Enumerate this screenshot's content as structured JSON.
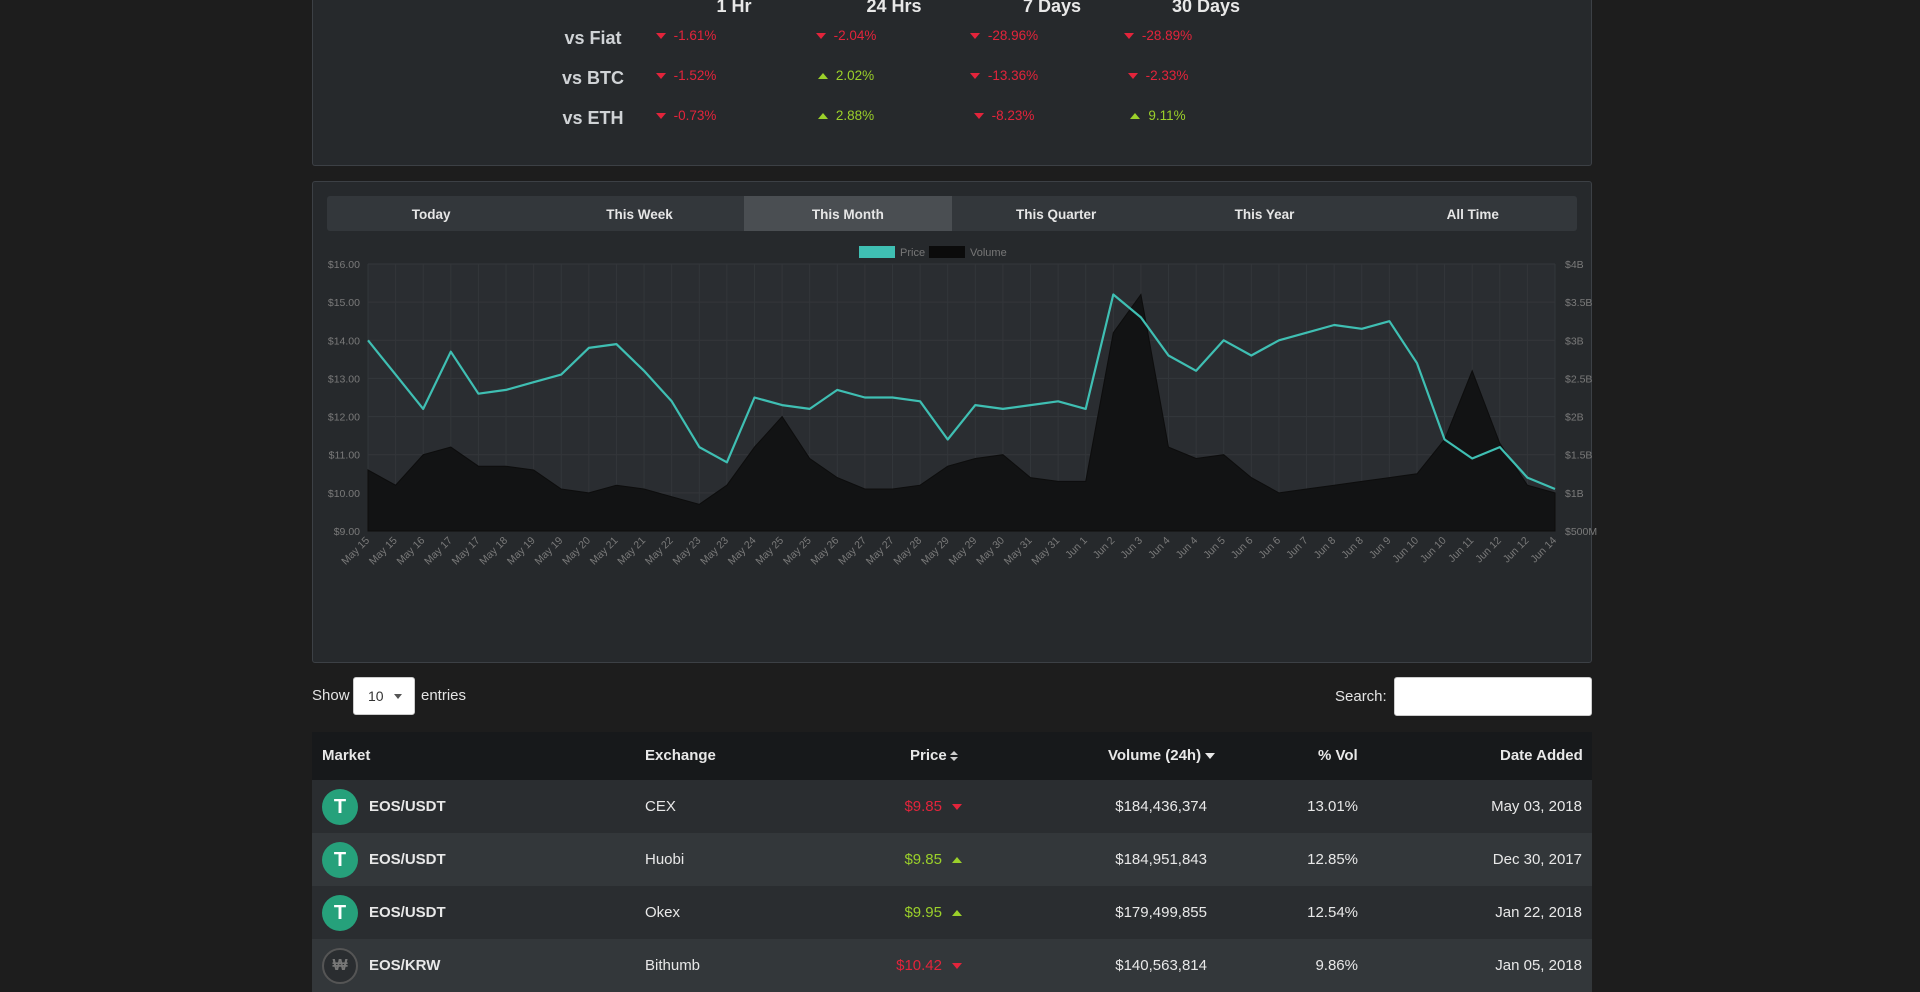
{
  "change_table": {
    "headers": [
      "1 Hr",
      "24 Hrs",
      "7 Days",
      "30 Days"
    ],
    "rows": [
      {
        "label": "vs Fiat",
        "values": [
          {
            "v": "-1.61%",
            "dir": "down"
          },
          {
            "v": "-2.04%",
            "dir": "down"
          },
          {
            "v": "-28.96%",
            "dir": "down"
          },
          {
            "v": "-28.89%",
            "dir": "down"
          }
        ]
      },
      {
        "label": "vs BTC",
        "values": [
          {
            "v": "-1.52%",
            "dir": "down"
          },
          {
            "v": "2.02%",
            "dir": "up"
          },
          {
            "v": "-13.36%",
            "dir": "down"
          },
          {
            "v": "-2.33%",
            "dir": "down"
          }
        ]
      },
      {
        "label": "vs ETH",
        "values": [
          {
            "v": "-0.73%",
            "dir": "down"
          },
          {
            "v": "2.88%",
            "dir": "up"
          },
          {
            "v": "-8.23%",
            "dir": "down"
          },
          {
            "v": "9.11%",
            "dir": "up"
          }
        ]
      }
    ]
  },
  "tabs": [
    "Today",
    "This Week",
    "This Month",
    "This Quarter",
    "This Year",
    "All Time"
  ],
  "active_tab": "This Month",
  "colors": {
    "price": "#3fbfb3",
    "volume": "#0a0a0a",
    "negative": "#e3243b",
    "positive": "#9bd02a"
  },
  "chart_data": {
    "type": "line",
    "legend": [
      "Price",
      "Volume"
    ],
    "legend_position": "top-center",
    "y_left_ticks": [
      "$16.00",
      "$15.00",
      "$14.00",
      "$13.00",
      "$12.00",
      "$11.00",
      "$10.00",
      "$9.00"
    ],
    "y_left_range": [
      9,
      16
    ],
    "y_right_ticks": [
      "$4B",
      "$3.5B",
      "$3B",
      "$2.5B",
      "$2B",
      "$1.5B",
      "$1B",
      "$500M"
    ],
    "y_right_range": [
      0.5,
      4
    ],
    "x_ticks": [
      "May 15",
      "May 15",
      "May 16",
      "May 17",
      "May 17",
      "May 18",
      "May 19",
      "May 19",
      "May 20",
      "May 21",
      "May 21",
      "May 22",
      "May 23",
      "May 23",
      "May 24",
      "May 25",
      "May 25",
      "May 26",
      "May 27",
      "May 27",
      "May 28",
      "May 29",
      "May 29",
      "May 30",
      "May 31",
      "May 31",
      "Jun 1",
      "Jun 2",
      "Jun 3",
      "Jun 4",
      "Jun 4",
      "Jun 5",
      "Jun 6",
      "Jun 6",
      "Jun 7",
      "Jun 8",
      "Jun 8",
      "Jun 9",
      "Jun 10",
      "Jun 10",
      "Jun 11",
      "Jun 12",
      "Jun 12",
      "Jun 14"
    ],
    "grid": true,
    "series": [
      {
        "name": "Price",
        "x": [
          0,
          1,
          2,
          3,
          4,
          5,
          6,
          7,
          8,
          9,
          10,
          11,
          12,
          13,
          14,
          15,
          16,
          17,
          18,
          19,
          20,
          21,
          22,
          23,
          24,
          25,
          26,
          27,
          28,
          29,
          30,
          31,
          32,
          33,
          34,
          35,
          36,
          37,
          38,
          39,
          40,
          41,
          42,
          43
        ],
        "values": [
          14.0,
          13.1,
          12.2,
          13.7,
          12.6,
          12.7,
          12.9,
          13.1,
          13.8,
          13.9,
          13.2,
          12.4,
          11.2,
          10.8,
          12.5,
          12.3,
          12.2,
          12.7,
          12.5,
          12.5,
          12.4,
          11.4,
          12.3,
          12.2,
          12.3,
          12.4,
          12.2,
          15.2,
          14.6,
          13.6,
          13.2,
          14.0,
          13.6,
          14.0,
          14.2,
          14.4,
          14.3,
          14.5,
          13.4,
          11.4,
          10.9,
          11.2,
          10.4,
          10.1
        ]
      },
      {
        "name": "Volume",
        "x": [
          0,
          1,
          2,
          3,
          4,
          5,
          6,
          7,
          8,
          9,
          10,
          11,
          12,
          13,
          14,
          15,
          16,
          17,
          18,
          19,
          20,
          21,
          22,
          23,
          24,
          25,
          26,
          27,
          28,
          29,
          30,
          31,
          32,
          33,
          34,
          35,
          36,
          37,
          38,
          39,
          40,
          41,
          42,
          43
        ],
        "values": [
          1.3,
          1.1,
          1.5,
          1.6,
          1.35,
          1.35,
          1.3,
          1.05,
          1.0,
          1.1,
          1.05,
          0.95,
          0.85,
          1.1,
          1.6,
          2.0,
          1.45,
          1.2,
          1.05,
          1.05,
          1.1,
          1.35,
          1.45,
          1.5,
          1.2,
          1.15,
          1.15,
          3.1,
          3.6,
          1.6,
          1.45,
          1.5,
          1.2,
          1.0,
          1.05,
          1.1,
          1.15,
          1.2,
          1.25,
          1.7,
          2.6,
          1.65,
          1.1,
          1.0
        ]
      }
    ]
  },
  "controls": {
    "show_label": "Show",
    "entries_value": "10",
    "entries_label": "entries",
    "search_label": "Search:"
  },
  "table": {
    "headers": {
      "market": "Market",
      "exchange": "Exchange",
      "price": "Price",
      "volume": "Volume (24h)",
      "pct_vol": "% Vol",
      "date_added": "Date Added"
    },
    "rows": [
      {
        "market": "EOS/USDT",
        "exchange": "CEX",
        "price": "$9.85",
        "dir": "down",
        "volume": "$184,436,374",
        "pct": "13.01%",
        "date": "May 03, 2018",
        "icon": "tether-icon"
      },
      {
        "market": "EOS/USDT",
        "exchange": "Huobi",
        "price": "$9.85",
        "dir": "up",
        "volume": "$184,951,843",
        "pct": "12.85%",
        "date": "Dec 30, 2017",
        "icon": "tether-icon"
      },
      {
        "market": "EOS/USDT",
        "exchange": "Okex",
        "price": "$9.95",
        "dir": "up",
        "volume": "$179,499,855",
        "pct": "12.54%",
        "date": "Jan 22, 2018",
        "icon": "tether-icon"
      },
      {
        "market": "EOS/KRW",
        "exchange": "Bithumb",
        "price": "$10.42",
        "dir": "down",
        "volume": "$140,563,814",
        "pct": "9.86%",
        "date": "Jan 05, 2018",
        "icon": "won-icon"
      }
    ]
  }
}
